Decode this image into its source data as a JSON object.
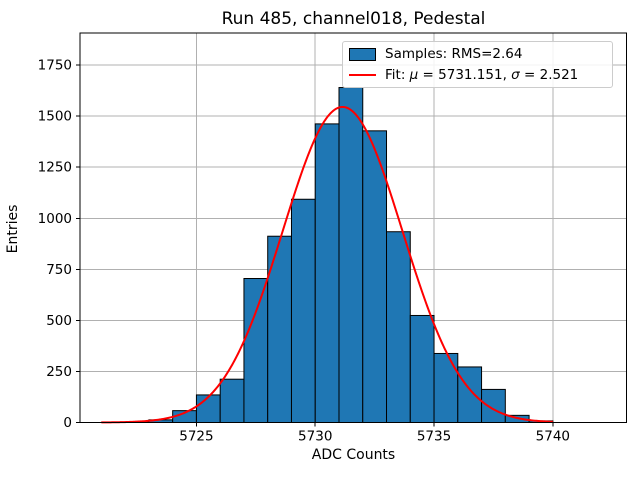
{
  "chart_data": {
    "type": "bar",
    "subtype": "histogram",
    "title": "Run 485, channel018, Pedestal",
    "xlabel": "ADC Counts",
    "ylabel": "Entries",
    "bin_edges": [
      5721,
      5722,
      5723,
      5724,
      5725,
      5726,
      5727,
      5728,
      5729,
      5730,
      5731,
      5732,
      5733,
      5734,
      5735,
      5736,
      5737,
      5738,
      5739,
      5740
    ],
    "counts": [
      1,
      3,
      13,
      58,
      135,
      212,
      705,
      912,
      1093,
      1462,
      1640,
      1428,
      934,
      524,
      338,
      272,
      162,
      35,
      8
    ],
    "xticks": [
      5725,
      5730,
      5735,
      5740
    ],
    "yticks": [
      0,
      250,
      500,
      750,
      1000,
      1250,
      1500,
      1750
    ],
    "xlim": [
      5720.1,
      5743.1
    ],
    "ylim": [
      0,
      1907
    ],
    "grid": true,
    "fit": {
      "type": "gaussian",
      "mu": 5731.151,
      "sigma": 2.521,
      "amplitude": 1545,
      "range": [
        5721,
        5740
      ]
    },
    "legend": {
      "position": "upper right",
      "samples_label": "Samples: RMS=2.64",
      "fit_label": {
        "prefix": "Fit: ",
        "mu_symbol": "μ",
        "mu_value": " = 5731.151, ",
        "sigma_symbol": "σ",
        "sigma_value": " = 2.521"
      }
    },
    "colors": {
      "bar_fill": "#1f77b4",
      "bar_edge": "#000000",
      "fit_line": "#ff0000",
      "grid": "#b0b0b0",
      "spine": "#000000",
      "legend_border": "#cccccc",
      "text": "#000000"
    }
  }
}
